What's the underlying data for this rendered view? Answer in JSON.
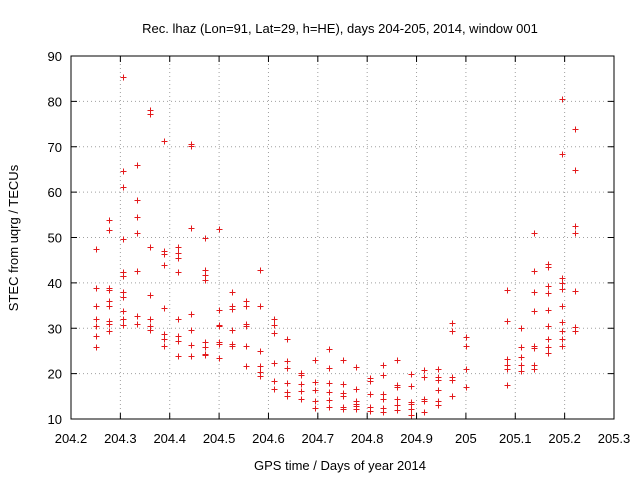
{
  "chart_data": {
    "type": "scatter",
    "title": "Rec. lhaz (Lon=91, Lat=29, h=HE), days 204-205, 2014, window 001",
    "xlabel": "GPS time / Days of year 2014",
    "ylabel": "STEC from uqrg / TECUs",
    "xlim": [
      204.2,
      205.3
    ],
    "ylim": [
      10,
      90
    ],
    "x_ticks": [
      204.2,
      204.3,
      204.4,
      204.5,
      204.6,
      204.7,
      204.8,
      204.9,
      205,
      205.1,
      205.2,
      205.3
    ],
    "x_tick_labels": [
      "204.2",
      "204.3",
      "204.4",
      "204.5",
      "204.6",
      "204.7",
      "204.8",
      "204.9",
      "205",
      "205.1",
      "205.2",
      "205.3"
    ],
    "y_ticks": [
      10,
      20,
      30,
      40,
      50,
      60,
      70,
      80,
      90
    ],
    "y_tick_labels": [
      "10",
      "20",
      "30",
      "40",
      "50",
      "60",
      "70",
      "80",
      "90"
    ],
    "grid": true,
    "legend": "none",
    "marker": "+",
    "color": "#e31a1c",
    "series": [
      {
        "points": [
          [
            204.25,
            47.5
          ],
          [
            204.25,
            38.8
          ],
          [
            204.25,
            35.0
          ],
          [
            204.25,
            32.0
          ],
          [
            204.25,
            30.5
          ],
          [
            204.25,
            28.3
          ],
          [
            204.25,
            25.8
          ],
          [
            204.277,
            53.8
          ],
          [
            204.277,
            51.7
          ],
          [
            204.277,
            38.8
          ],
          [
            204.277,
            38.5
          ],
          [
            204.277,
            36.0
          ],
          [
            204.277,
            35.0
          ],
          [
            204.277,
            31.7
          ],
          [
            204.277,
            31.0
          ],
          [
            204.277,
            29.5
          ],
          [
            204.305,
            85.3
          ],
          [
            204.305,
            64.6
          ],
          [
            204.305,
            61.2
          ],
          [
            204.305,
            49.6
          ],
          [
            204.305,
            42.3
          ],
          [
            204.305,
            41.5
          ],
          [
            204.305,
            38.0
          ],
          [
            204.305,
            36.9
          ],
          [
            204.305,
            33.9
          ],
          [
            204.305,
            32.0
          ],
          [
            204.305,
            30.8
          ],
          [
            204.333,
            65.9
          ],
          [
            204.333,
            58.2
          ],
          [
            204.333,
            54.5
          ],
          [
            204.333,
            50.9
          ],
          [
            204.333,
            42.7
          ],
          [
            204.333,
            32.6
          ],
          [
            204.333,
            31.0
          ],
          [
            204.361,
            78.0
          ],
          [
            204.361,
            77.3
          ],
          [
            204.361,
            47.8
          ],
          [
            204.361,
            37.3
          ],
          [
            204.361,
            32.1
          ],
          [
            204.361,
            30.5
          ],
          [
            204.361,
            29.6
          ],
          [
            204.389,
            71.3
          ],
          [
            204.389,
            47.0
          ],
          [
            204.389,
            46.3
          ],
          [
            204.389,
            44.0
          ],
          [
            204.389,
            34.5
          ],
          [
            204.389,
            28.8
          ],
          [
            204.389,
            27.6
          ],
          [
            204.389,
            26.0
          ],
          [
            204.416,
            48.0
          ],
          [
            204.416,
            46.5
          ],
          [
            204.416,
            45.4
          ],
          [
            204.416,
            42.4
          ],
          [
            204.416,
            32.0
          ],
          [
            204.416,
            28.3
          ],
          [
            204.416,
            27.3
          ],
          [
            204.416,
            23.8
          ],
          [
            204.444,
            70.5
          ],
          [
            204.444,
            70.2
          ],
          [
            204.444,
            52.2
          ],
          [
            204.444,
            33.2
          ],
          [
            204.444,
            29.7
          ],
          [
            204.444,
            26.3
          ],
          [
            204.444,
            23.8
          ],
          [
            204.472,
            49.9
          ],
          [
            204.472,
            42.8
          ],
          [
            204.472,
            41.7
          ],
          [
            204.472,
            40.6
          ],
          [
            204.472,
            27.0
          ],
          [
            204.472,
            25.8
          ],
          [
            204.472,
            24.4
          ],
          [
            204.472,
            24.0
          ],
          [
            204.5,
            51.9
          ],
          [
            204.5,
            34.0
          ],
          [
            204.5,
            30.7
          ],
          [
            204.5,
            30.4
          ],
          [
            204.5,
            27.0
          ],
          [
            204.5,
            26.5
          ],
          [
            204.5,
            23.5
          ],
          [
            204.527,
            38.0
          ],
          [
            204.527,
            34.9
          ],
          [
            204.527,
            34.2
          ],
          [
            204.527,
            29.6
          ],
          [
            204.527,
            26.5
          ],
          [
            204.527,
            26.0
          ],
          [
            204.555,
            35.9
          ],
          [
            204.555,
            34.8
          ],
          [
            204.555,
            31.0
          ],
          [
            204.555,
            30.5
          ],
          [
            204.555,
            26.0
          ],
          [
            204.555,
            21.7
          ],
          [
            204.583,
            42.9
          ],
          [
            204.583,
            34.8
          ],
          [
            204.583,
            25.0
          ],
          [
            204.583,
            21.6
          ],
          [
            204.583,
            20.4
          ],
          [
            204.583,
            19.4
          ],
          [
            204.611,
            32.0
          ],
          [
            204.611,
            30.7
          ],
          [
            204.611,
            29.0
          ],
          [
            204.611,
            22.3
          ],
          [
            204.611,
            18.4
          ],
          [
            204.611,
            16.6
          ],
          [
            204.638,
            27.6
          ],
          [
            204.638,
            22.7
          ],
          [
            204.638,
            21.3
          ],
          [
            204.638,
            18.0
          ],
          [
            204.638,
            16.0
          ],
          [
            204.638,
            15.0
          ],
          [
            204.666,
            20.1
          ],
          [
            204.666,
            19.7
          ],
          [
            204.666,
            17.7
          ],
          [
            204.666,
            16.1
          ],
          [
            204.666,
            14.3
          ],
          [
            204.694,
            22.9
          ],
          [
            204.694,
            18.2
          ],
          [
            204.694,
            16.5
          ],
          [
            204.694,
            14.0
          ],
          [
            204.694,
            12.4
          ],
          [
            204.722,
            25.5
          ],
          [
            204.722,
            21.3
          ],
          [
            204.722,
            18.0
          ],
          [
            204.722,
            15.9
          ],
          [
            204.722,
            14.2
          ],
          [
            204.722,
            12.6
          ],
          [
            204.75,
            23.0
          ],
          [
            204.75,
            17.7
          ],
          [
            204.75,
            15.7
          ],
          [
            204.75,
            15.0
          ],
          [
            204.75,
            12.7
          ],
          [
            204.75,
            12.3
          ],
          [
            204.777,
            21.5
          ],
          [
            204.777,
            16.7
          ],
          [
            204.777,
            13.9
          ],
          [
            204.777,
            13.3
          ],
          [
            204.777,
            12.8
          ],
          [
            204.777,
            12.2
          ],
          [
            204.805,
            19.0
          ],
          [
            204.805,
            18.4
          ],
          [
            204.805,
            15.4
          ],
          [
            204.805,
            12.6
          ],
          [
            204.805,
            11.7
          ],
          [
            204.833,
            21.8
          ],
          [
            204.833,
            19.6
          ],
          [
            204.833,
            15.6
          ],
          [
            204.833,
            14.3
          ],
          [
            204.833,
            12.4
          ],
          [
            204.833,
            11.6
          ],
          [
            204.861,
            23.1
          ],
          [
            204.861,
            17.5
          ],
          [
            204.861,
            17.0
          ],
          [
            204.861,
            14.3
          ],
          [
            204.861,
            13.0
          ],
          [
            204.861,
            11.9
          ],
          [
            204.888,
            20.0
          ],
          [
            204.888,
            17.3
          ],
          [
            204.888,
            13.8
          ],
          [
            204.888,
            13.2
          ],
          [
            204.888,
            12.3
          ],
          [
            204.888,
            10.9
          ],
          [
            204.916,
            20.7
          ],
          [
            204.916,
            19.3
          ],
          [
            204.916,
            14.5
          ],
          [
            204.916,
            14.0
          ],
          [
            204.916,
            11.5
          ],
          [
            204.944,
            21.1
          ],
          [
            204.944,
            19.2
          ],
          [
            204.944,
            18.5
          ],
          [
            204.944,
            16.5
          ],
          [
            204.944,
            14.0
          ],
          [
            204.944,
            13.0
          ],
          [
            204.972,
            31.1
          ],
          [
            204.972,
            29.5
          ],
          [
            204.972,
            19.2
          ],
          [
            204.972,
            18.6
          ],
          [
            204.972,
            15.0
          ],
          [
            205.0,
            28.0
          ],
          [
            205.0,
            26.0
          ],
          [
            205.0,
            21.0
          ],
          [
            205.0,
            17.0
          ],
          [
            205.083,
            38.5
          ],
          [
            205.083,
            31.5
          ],
          [
            205.083,
            23.3
          ],
          [
            205.083,
            21.9
          ],
          [
            205.083,
            21.0
          ],
          [
            205.083,
            17.6
          ],
          [
            205.111,
            30.0
          ],
          [
            205.111,
            25.8
          ],
          [
            205.111,
            23.6
          ],
          [
            205.111,
            21.9
          ],
          [
            205.111,
            20.6
          ],
          [
            205.138,
            51.1
          ],
          [
            205.138,
            42.7
          ],
          [
            205.138,
            38.0
          ],
          [
            205.138,
            33.7
          ],
          [
            205.138,
            26.1
          ],
          [
            205.138,
            25.7
          ],
          [
            205.138,
            21.8
          ],
          [
            205.138,
            21.0
          ],
          [
            205.166,
            44.1
          ],
          [
            205.166,
            43.5
          ],
          [
            205.166,
            39.3
          ],
          [
            205.166,
            37.8
          ],
          [
            205.166,
            34.0
          ],
          [
            205.166,
            30.6
          ],
          [
            205.166,
            27.6
          ],
          [
            205.166,
            25.8
          ],
          [
            205.166,
            24.6
          ],
          [
            205.194,
            80.6
          ],
          [
            205.194,
            68.3
          ],
          [
            205.194,
            41.1
          ],
          [
            205.194,
            40.0
          ],
          [
            205.194,
            38.7
          ],
          [
            205.194,
            35.0
          ],
          [
            205.194,
            31.4
          ],
          [
            205.194,
            29.5
          ],
          [
            205.194,
            27.6
          ],
          [
            205.194,
            26.0
          ],
          [
            205.222,
            73.9
          ],
          [
            205.222,
            64.8
          ],
          [
            205.222,
            52.6
          ],
          [
            205.222,
            51.1
          ],
          [
            205.222,
            38.2
          ],
          [
            205.222,
            30.2
          ],
          [
            205.222,
            29.3
          ]
        ]
      }
    ]
  }
}
